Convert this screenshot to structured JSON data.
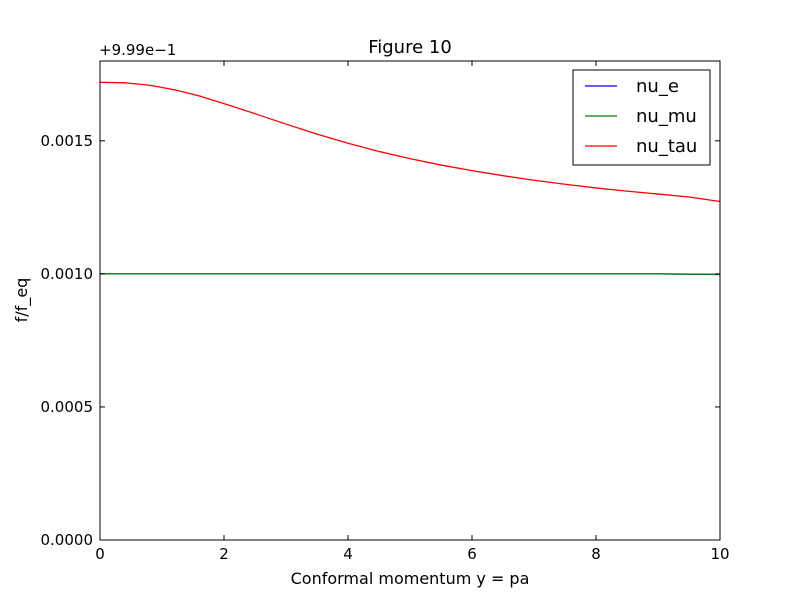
{
  "chart_data": {
    "type": "line",
    "title": "Figure 10",
    "xlabel": "Conformal momentum y = pa",
    "ylabel": "f/f_eq",
    "offset_label": "+9.99e−1",
    "xlim": [
      0,
      10
    ],
    "ylim": [
      0.0,
      0.0018
    ],
    "x_ticks": [
      0,
      2,
      4,
      6,
      8,
      10
    ],
    "x_tick_labels": [
      "0",
      "2",
      "4",
      "6",
      "8",
      "10"
    ],
    "y_ticks": [
      0.0,
      0.0005,
      0.001,
      0.0015
    ],
    "y_tick_labels": [
      "0.0000",
      "0.0005",
      "0.0010",
      "0.0015"
    ],
    "grid": false,
    "legend_position": "top-right",
    "series": [
      {
        "name": "nu_e",
        "color": "#0000ff",
        "x": [
          0,
          1,
          2,
          3,
          4,
          5,
          6,
          7,
          8,
          9,
          10
        ],
        "y": [
          0.001,
          0.001,
          0.001,
          0.001,
          0.001,
          0.001,
          0.001,
          0.001,
          0.001,
          0.001,
          0.000998
        ]
      },
      {
        "name": "nu_mu",
        "color": "#008000",
        "x": [
          0,
          1,
          2,
          3,
          4,
          5,
          6,
          7,
          8,
          9,
          10
        ],
        "y": [
          0.001,
          0.001,
          0.001,
          0.001,
          0.001,
          0.001,
          0.001,
          0.001,
          0.001,
          0.001,
          0.000998
        ]
      },
      {
        "name": "nu_tau",
        "color": "#ff0000",
        "x": [
          0,
          0.4,
          0.8,
          1.2,
          1.6,
          2,
          2.5,
          3,
          3.5,
          4,
          4.5,
          5,
          5.5,
          6,
          6.5,
          7,
          7.5,
          8,
          8.5,
          9,
          9.5,
          10
        ],
        "y": [
          0.00172,
          0.001718,
          0.001709,
          0.001692,
          0.001669,
          0.00164,
          0.001602,
          0.001563,
          0.001525,
          0.001491,
          0.00146,
          0.001433,
          0.001409,
          0.001388,
          0.001369,
          0.001352,
          0.001337,
          0.001323,
          0.001311,
          0.0013,
          0.001289,
          0.001272
        ]
      }
    ]
  }
}
